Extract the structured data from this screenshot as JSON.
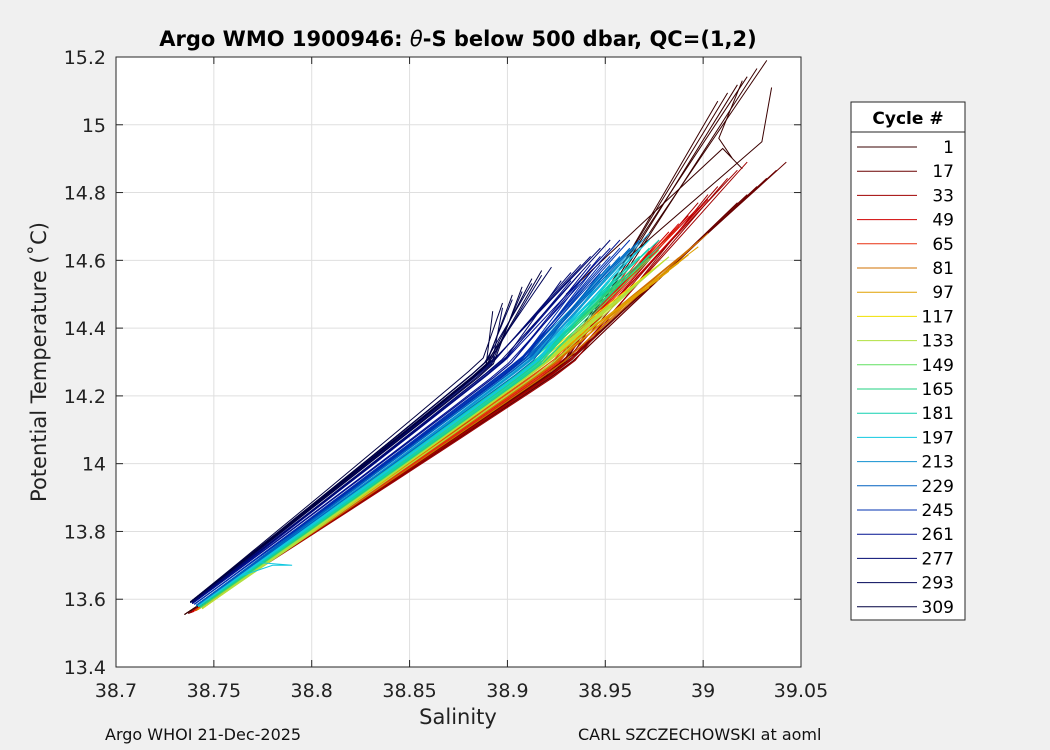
{
  "chart_data": {
    "type": "line",
    "title": "Argo WMO 1900946: θ-S below 500 dbar,  QC=(1,2)",
    "title_prefix": "Argo WMO 1900946: ",
    "title_theta": "θ",
    "title_suffix": "-S below 500 dbar,  QC=(1,2)",
    "xlabel": "Salinity",
    "ylabel": "Potential Temperature (˚C)",
    "xlim": [
      38.7,
      39.05
    ],
    "ylim": [
      13.4,
      15.2
    ],
    "xticks": [
      "38.7",
      "38.75",
      "38.8",
      "38.85",
      "38.9",
      "38.95",
      "39",
      "39.05"
    ],
    "yticks": [
      "13.4",
      "13.6",
      "13.8",
      "14",
      "14.2",
      "14.4",
      "14.6",
      "14.8",
      "15",
      "15.2"
    ],
    "grid": true,
    "legend_title": "Cycle #",
    "legend_position": "right",
    "series": [
      {
        "name": "1",
        "color": "#3a0000",
        "s_min": 38.735,
        "t_min": 13.555,
        "s_mid": 38.93,
        "s_max": 39.02,
        "t_max": 15.13,
        "hook": true
      },
      {
        "name": "17",
        "color": "#6a0000",
        "s_min": 38.737,
        "t_min": 13.558,
        "s_mid": 38.93,
        "s_max": 39.03,
        "t_max": 14.83
      },
      {
        "name": "33",
        "color": "#a00000",
        "s_min": 38.738,
        "t_min": 13.56,
        "s_mid": 38.93,
        "s_max": 39.01,
        "t_max": 14.83
      },
      {
        "name": "49",
        "color": "#d00000",
        "s_min": 38.739,
        "t_min": 13.562,
        "s_mid": 38.925,
        "s_max": 38.99,
        "t_max": 14.72
      },
      {
        "name": "65",
        "color": "#e83010",
        "s_min": 38.74,
        "t_min": 13.565,
        "s_mid": 38.925,
        "s_max": 38.975,
        "t_max": 14.64
      },
      {
        "name": "81",
        "color": "#d07000",
        "s_min": 38.741,
        "t_min": 13.567,
        "s_mid": 38.925,
        "s_max": 38.99,
        "t_max": 14.62
      },
      {
        "name": "97",
        "color": "#e0a000",
        "s_min": 38.742,
        "t_min": 13.57,
        "s_mid": 38.92,
        "s_max": 38.985,
        "t_max": 14.58
      },
      {
        "name": "117",
        "color": "#f0e000",
        "s_min": 38.744,
        "t_min": 13.572,
        "s_mid": 38.92,
        "s_max": 38.97,
        "t_max": 14.55
      },
      {
        "name": "133",
        "color": "#b0e040",
        "s_min": 38.744,
        "t_min": 13.573,
        "s_mid": 38.92,
        "s_max": 38.97,
        "t_max": 14.55
      },
      {
        "name": "149",
        "color": "#60e060",
        "s_min": 38.743,
        "t_min": 13.575,
        "s_mid": 38.915,
        "s_max": 38.965,
        "t_max": 14.57
      },
      {
        "name": "165",
        "color": "#20d080",
        "s_min": 38.743,
        "t_min": 13.577,
        "s_mid": 38.915,
        "s_max": 38.965,
        "t_max": 14.58
      },
      {
        "name": "181",
        "color": "#10d0b0",
        "s_min": 38.742,
        "t_min": 13.578,
        "s_mid": 38.915,
        "s_max": 38.965,
        "t_max": 14.6
      },
      {
        "name": "197",
        "color": "#10c8e0",
        "s_min": 38.742,
        "t_min": 13.58,
        "s_mid": 38.915,
        "s_max": 38.96,
        "t_max": 14.6,
        "notch": true
      },
      {
        "name": "213",
        "color": "#1090d0",
        "s_min": 38.741,
        "t_min": 13.58,
        "s_mid": 38.91,
        "s_max": 38.96,
        "t_max": 14.62
      },
      {
        "name": "229",
        "color": "#0060c0",
        "s_min": 38.741,
        "t_min": 13.582,
        "s_mid": 38.91,
        "s_max": 38.955,
        "t_max": 14.6
      },
      {
        "name": "245",
        "color": "#0030b0",
        "s_min": 38.74,
        "t_min": 13.585,
        "s_mid": 38.905,
        "s_max": 38.95,
        "t_max": 14.6
      },
      {
        "name": "261",
        "color": "#001090",
        "s_min": 38.739,
        "t_min": 13.587,
        "s_mid": 38.9,
        "s_max": 38.945,
        "t_max": 14.6
      },
      {
        "name": "277",
        "color": "#000870",
        "s_min": 38.739,
        "t_min": 13.59,
        "s_mid": 38.895,
        "s_max": 38.94,
        "t_max": 14.6
      },
      {
        "name": "293",
        "color": "#000458",
        "s_min": 38.738,
        "t_min": 13.59,
        "s_mid": 38.89,
        "s_max": 38.91,
        "t_max": 14.52
      },
      {
        "name": "309",
        "color": "#000040",
        "s_min": 38.738,
        "t_min": 13.592,
        "s_mid": 38.89,
        "s_max": 38.905,
        "t_max": 14.51
      }
    ]
  },
  "footer": {
    "left": "Argo WHOI 21-Dec-2025",
    "right": "CARL SZCZECHOWSKI at aoml"
  }
}
